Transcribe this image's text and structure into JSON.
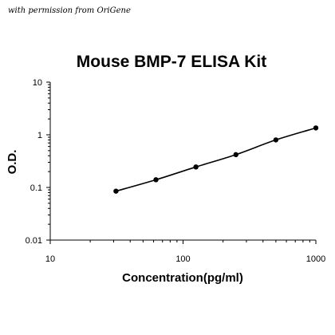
{
  "header": {
    "permission_note": "with permission from OriGene"
  },
  "chart_data": {
    "type": "line",
    "title": "Mouse BMP-7 ELISA Kit",
    "xlabel": "Concentration(pg/ml)",
    "ylabel": "O.D.",
    "x_scale": "log",
    "y_scale": "log",
    "xlim": [
      10,
      1000
    ],
    "ylim": [
      0.01,
      10
    ],
    "x_ticks": [
      "10",
      "100",
      "1000"
    ],
    "y_ticks": [
      "10",
      "1",
      "0.1",
      "0.01"
    ],
    "grid": false,
    "legend": "none",
    "series": [
      {
        "x": [
          31.25,
          62.5,
          125,
          250,
          500,
          1000
        ],
        "y": [
          0.085,
          0.14,
          0.245,
          0.42,
          0.8,
          1.35
        ]
      }
    ],
    "colors": {
      "line": "#000000",
      "marker": "#000000"
    }
  }
}
